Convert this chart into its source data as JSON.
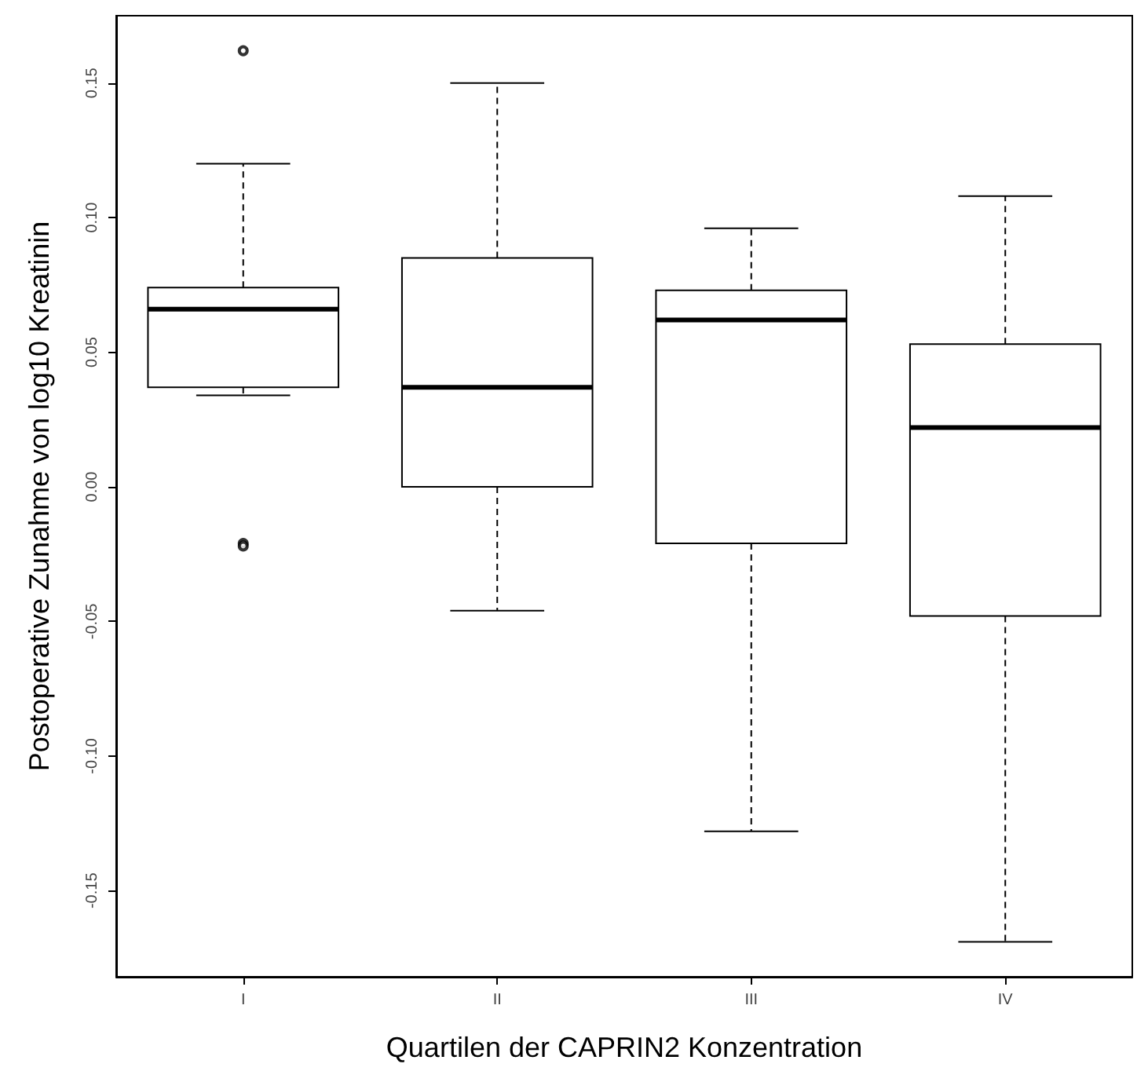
{
  "chart_data": {
    "type": "box",
    "xlabel": "Quartilen der CAPRIN2 Konzentration",
    "ylabel": "Postoperative Zunahme von log10 Kreatinin",
    "categories": [
      "I",
      "II",
      "III",
      "IV"
    ],
    "boxes": [
      {
        "low": 0.034,
        "q1": 0.037,
        "median": 0.066,
        "q3": 0.074,
        "high": 0.12,
        "outliers": [
          0.162,
          -0.021,
          -0.022
        ]
      },
      {
        "low": -0.046,
        "q1": 0.0,
        "median": 0.037,
        "q3": 0.085,
        "high": 0.15
      },
      {
        "low": -0.128,
        "q1": -0.021,
        "median": 0.062,
        "q3": 0.073,
        "high": 0.096
      },
      {
        "low": -0.169,
        "q1": -0.048,
        "median": 0.022,
        "q3": 0.053,
        "high": 0.108
      }
    ],
    "ylim": [
      -0.182,
      0.175
    ],
    "yticks": [
      {
        "value": -0.15,
        "label": "-0.15"
      },
      {
        "value": -0.1,
        "label": "-0.10"
      },
      {
        "value": -0.05,
        "label": "-0.05"
      },
      {
        "value": 0,
        "label": "0.00"
      },
      {
        "value": 0.05,
        "label": "0.05"
      },
      {
        "value": 0.1,
        "label": "0.10"
      },
      {
        "value": 0.15,
        "label": "0.15"
      }
    ],
    "grid": false
  }
}
